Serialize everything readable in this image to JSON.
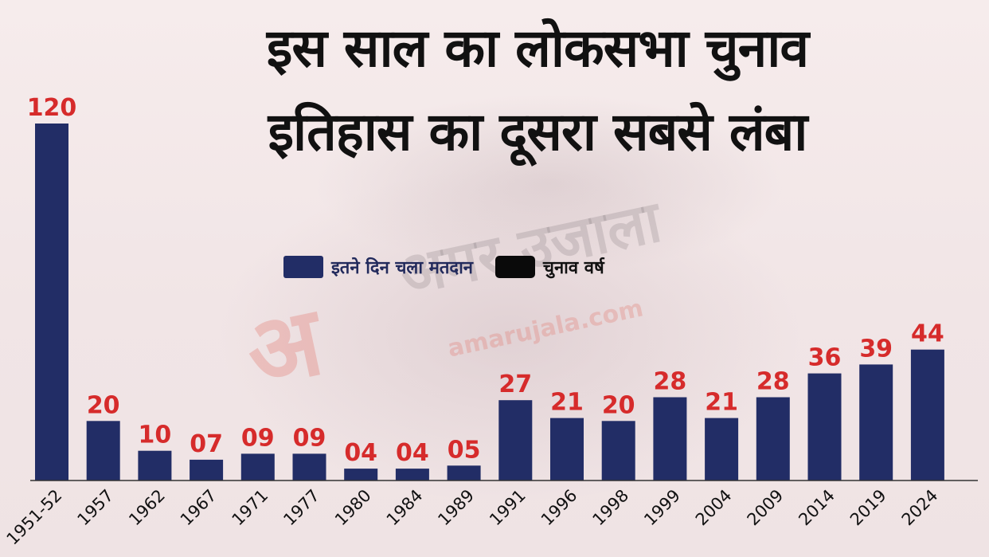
{
  "title": {
    "line1": "इस साल का लोकसभा चुनाव",
    "line2": "इतिहास का दूसरा सबसे लंबा"
  },
  "legend": {
    "items": [
      {
        "label": "इतने दिन चला मतदान",
        "color": "#222d66"
      },
      {
        "label": "चुनाव वर्ष",
        "color": "#0a0a0a"
      }
    ]
  },
  "watermark": {
    "brand": "अमर उजाला",
    "url": "amarujala.com",
    "logo_glyph": "अ"
  },
  "colors": {
    "bar": "#222d66",
    "value_label": "#d62b2b",
    "axis_line": "#333333"
  },
  "chart_data": {
    "type": "bar",
    "title": "इस साल का लोकसभा चुनाव इतिहास का दूसरा सबसे लंबा",
    "categories": [
      "1951-52",
      "1957",
      "1962",
      "1967",
      "1971",
      "1977",
      "1980",
      "1984",
      "1989",
      "1991",
      "1996",
      "1998",
      "1999",
      "2004",
      "2009",
      "2014",
      "2019",
      "2024"
    ],
    "values": [
      120,
      20,
      10,
      7,
      9,
      9,
      4,
      4,
      5,
      27,
      21,
      20,
      28,
      21,
      28,
      36,
      39,
      44
    ],
    "value_labels": [
      "120",
      "20",
      "10",
      "07",
      "09",
      "09",
      "04",
      "04",
      "05",
      "27",
      "21",
      "20",
      "28",
      "21",
      "28",
      "36",
      "39",
      "44"
    ],
    "series": [
      {
        "name": "इतने दिन चला मतदान",
        "values": [
          120,
          20,
          10,
          7,
          9,
          9,
          4,
          4,
          5,
          27,
          21,
          20,
          28,
          21,
          28,
          36,
          39,
          44
        ]
      }
    ],
    "xlabel": "",
    "ylabel": "",
    "ylim": [
      0,
      120
    ],
    "grid": false,
    "legend_position": "top-center",
    "tick_label_rotation": -45
  }
}
